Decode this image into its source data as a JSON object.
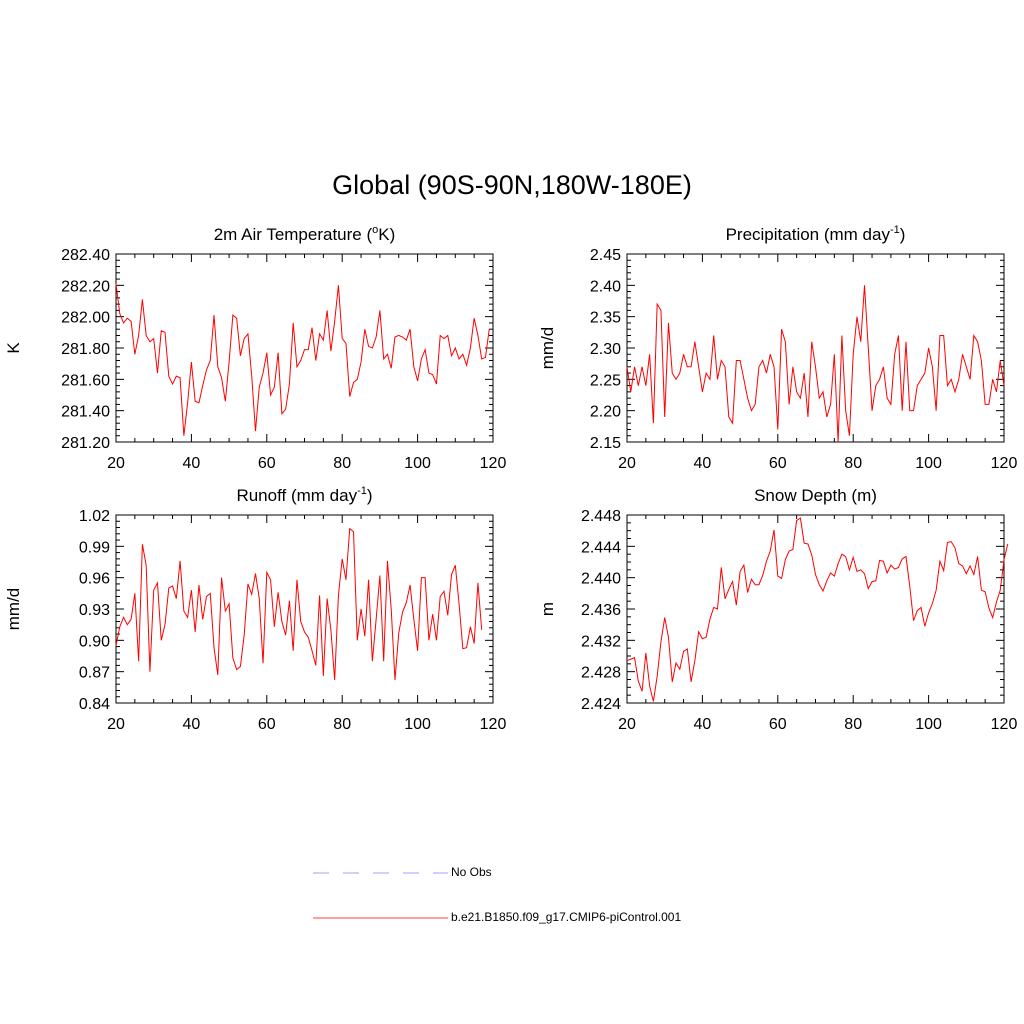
{
  "title": "Global (90S-90N,180W-180E)",
  "colors": {
    "model": "#ff0000",
    "obs": "#b3b3ff",
    "axis": "#000000"
  },
  "legend": [
    {
      "label": "No Obs",
      "style": "dashed",
      "color": "#b3b3ff"
    },
    {
      "label": "b.e21.B1850.f09_g17.CMIP6-piControl.001",
      "style": "solid",
      "color": "#ff6666"
    }
  ],
  "chart_data": [
    {
      "type": "line",
      "title": "2m Air Temperature (",
      "title_super": "o",
      "title_after": "K)",
      "ylabel": "K",
      "xlim": [
        20,
        120
      ],
      "ylim": [
        281.2,
        282.4
      ],
      "xticks": [
        20,
        40,
        60,
        80,
        100,
        120
      ],
      "xticklabels": [
        "20",
        "40",
        "60",
        "80",
        "100",
        "120"
      ],
      "yticks": [
        281.2,
        281.4,
        281.6,
        281.8,
        282.0,
        282.2,
        282.4
      ],
      "yticklabels": [
        "281.20",
        "281.40",
        "281.60",
        "281.80",
        "282.00",
        "282.20",
        "282.40"
      ],
      "yminor_count": 5,
      "x_start": 20,
      "values": [
        282.21,
        282.02,
        281.96,
        281.99,
        281.97,
        281.76,
        281.88,
        282.11,
        281.88,
        281.84,
        281.86,
        281.64,
        281.91,
        281.9,
        281.62,
        281.57,
        281.62,
        281.61,
        281.24,
        281.45,
        281.71,
        281.46,
        281.45,
        281.56,
        281.66,
        281.72,
        282.01,
        281.68,
        281.61,
        281.46,
        281.71,
        282.01,
        281.99,
        281.75,
        281.86,
        281.89,
        281.62,
        281.27,
        281.55,
        281.64,
        281.77,
        281.5,
        281.55,
        281.77,
        281.38,
        281.41,
        281.57,
        281.96,
        281.68,
        281.72,
        281.79,
        281.79,
        281.93,
        281.72,
        281.89,
        281.85,
        282.04,
        281.78,
        281.97,
        282.2,
        281.86,
        281.83,
        281.49,
        281.58,
        281.6,
        281.71,
        281.92,
        281.81,
        281.8,
        281.87,
        282.04,
        281.73,
        281.76,
        281.67,
        281.87,
        281.88,
        281.87,
        281.85,
        281.92,
        281.68,
        281.59,
        281.73,
        281.79,
        281.64,
        281.63,
        281.57,
        281.88,
        281.86,
        281.88,
        281.75,
        281.8,
        281.73,
        281.76,
        281.69,
        281.8,
        281.99,
        281.88,
        281.73,
        281.74,
        281.92
      ]
    },
    {
      "type": "line",
      "title": "Precipitation (mm day",
      "title_super": "-1",
      "title_after": ")",
      "ylabel": "mm/d",
      "xlim": [
        20,
        120
      ],
      "ylim": [
        2.15,
        2.45
      ],
      "xticks": [
        20,
        40,
        60,
        80,
        100,
        120
      ],
      "xticklabels": [
        "20",
        "40",
        "60",
        "80",
        "100",
        "120"
      ],
      "yticks": [
        2.15,
        2.2,
        2.25,
        2.3,
        2.35,
        2.4,
        2.45
      ],
      "yticklabels": [
        "2.15",
        "2.20",
        "2.25",
        "2.30",
        "2.35",
        "2.40",
        "2.45"
      ],
      "yminor_count": 5,
      "x_start": 20,
      "values": [
        2.27,
        2.23,
        2.27,
        2.24,
        2.27,
        2.24,
        2.29,
        2.18,
        2.37,
        2.36,
        2.19,
        2.34,
        2.26,
        2.25,
        2.26,
        2.29,
        2.27,
        2.27,
        2.31,
        2.27,
        2.23,
        2.26,
        2.25,
        2.32,
        2.25,
        2.28,
        2.27,
        2.19,
        2.18,
        2.28,
        2.28,
        2.25,
        2.22,
        2.2,
        2.21,
        2.27,
        2.28,
        2.26,
        2.29,
        2.27,
        2.17,
        2.33,
        2.31,
        2.21,
        2.27,
        2.23,
        2.22,
        2.26,
        2.19,
        2.31,
        2.27,
        2.22,
        2.23,
        2.19,
        2.21,
        2.29,
        2.15,
        2.32,
        2.2,
        2.16,
        2.29,
        2.35,
        2.31,
        2.4,
        2.3,
        2.2,
        2.24,
        2.25,
        2.27,
        2.22,
        2.21,
        2.29,
        2.32,
        2.2,
        2.31,
        2.2,
        2.2,
        2.24,
        2.25,
        2.26,
        2.3,
        2.27,
        2.2,
        2.32,
        2.32,
        2.24,
        2.25,
        2.23,
        2.25,
        2.29,
        2.27,
        2.25,
        2.32,
        2.31,
        2.28,
        2.21,
        2.21,
        2.25,
        2.23,
        2.28,
        2.24
      ]
    },
    {
      "type": "line",
      "title": "Runoff (mm day",
      "title_super": "-1",
      "title_after": ")",
      "ylabel": "mm/d",
      "xlim": [
        20,
        120
      ],
      "ylim": [
        0.84,
        1.02
      ],
      "xticks": [
        20,
        40,
        60,
        80,
        100,
        120
      ],
      "xticklabels": [
        "20",
        "40",
        "60",
        "80",
        "100",
        "120"
      ],
      "yticks": [
        0.84,
        0.87,
        0.9,
        0.93,
        0.96,
        0.99,
        1.02
      ],
      "yticklabels": [
        "0.84",
        "0.87",
        "0.90",
        "0.93",
        "0.96",
        "0.99",
        "1.02"
      ],
      "yminor_count": 5,
      "x_start": 20,
      "values": [
        0.895,
        0.913,
        0.922,
        0.915,
        0.92,
        0.945,
        0.88,
        0.992,
        0.972,
        0.87,
        0.948,
        0.955,
        0.9,
        0.915,
        0.95,
        0.952,
        0.94,
        0.976,
        0.928,
        0.922,
        0.948,
        0.908,
        0.953,
        0.92,
        0.942,
        0.945,
        0.893,
        0.867,
        0.96,
        0.928,
        0.935,
        0.883,
        0.872,
        0.875,
        0.905,
        0.954,
        0.944,
        0.964,
        0.94,
        0.878,
        0.965,
        0.958,
        0.913,
        0.946,
        0.918,
        0.905,
        0.938,
        0.89,
        0.958,
        0.918,
        0.908,
        0.903,
        0.89,
        0.876,
        0.943,
        0.866,
        0.94,
        0.91,
        0.862,
        0.943,
        0.978,
        0.958,
        1.007,
        1.004,
        0.9,
        0.93,
        0.904,
        0.958,
        0.88,
        0.92,
        0.962,
        0.88,
        0.976,
        0.93,
        0.862,
        0.907,
        0.927,
        0.936,
        0.953,
        0.92,
        0.89,
        0.96,
        0.96,
        0.9,
        0.925,
        0.9,
        0.942,
        0.947,
        0.924,
        0.963,
        0.972,
        0.935,
        0.892,
        0.893,
        0.913,
        0.897,
        0.955,
        0.91
      ]
    },
    {
      "type": "line",
      "title": "Snow Depth (m)",
      "title_super": "",
      "title_after": "",
      "ylabel": "m",
      "xlim": [
        20,
        120
      ],
      "ylim": [
        2.424,
        2.448
      ],
      "xticks": [
        20,
        40,
        60,
        80,
        100,
        120
      ],
      "xticklabels": [
        "20",
        "40",
        "60",
        "80",
        "100",
        "120"
      ],
      "yticks": [
        2.424,
        2.428,
        2.432,
        2.436,
        2.44,
        2.444,
        2.448
      ],
      "yticklabels": [
        "2.424",
        "2.428",
        "2.432",
        "2.436",
        "2.440",
        "2.444",
        "2.448"
      ],
      "yminor_count": 4,
      "x_start": 20,
      "values": [
        2.4294,
        2.4296,
        2.4298,
        2.4268,
        2.4255,
        2.4304,
        2.4262,
        2.4242,
        2.4274,
        2.4318,
        2.4349,
        2.4324,
        2.4267,
        2.4291,
        2.4283,
        2.4306,
        2.4309,
        2.4267,
        2.4294,
        2.4331,
        2.4322,
        2.4324,
        2.4347,
        2.4362,
        2.436,
        2.4413,
        2.4373,
        2.4385,
        2.4395,
        2.4365,
        2.4408,
        2.4416,
        2.4381,
        2.4398,
        2.4391,
        2.4391,
        2.4403,
        2.4421,
        2.4434,
        2.4461,
        2.4402,
        2.4399,
        2.4423,
        2.4434,
        2.4436,
        2.4473,
        2.4476,
        2.4444,
        2.4443,
        2.4429,
        2.4404,
        2.4391,
        2.4383,
        2.4396,
        2.4406,
        2.4402,
        2.4418,
        2.443,
        2.4427,
        2.441,
        2.4426,
        2.4408,
        2.441,
        2.4405,
        2.4386,
        2.4395,
        2.4396,
        2.4422,
        2.4421,
        2.4406,
        2.4416,
        2.4411,
        2.4413,
        2.4424,
        2.4427,
        2.4389,
        2.4345,
        2.4358,
        2.4362,
        2.4338,
        2.4355,
        2.4367,
        2.4384,
        2.4421,
        2.4409,
        2.4445,
        2.4446,
        2.4438,
        2.4418,
        2.4415,
        2.4405,
        2.4415,
        2.4404,
        2.4427,
        2.4384,
        2.4382,
        2.4361,
        2.4349,
        2.4369,
        2.4384,
        2.4423,
        2.4443
      ]
    }
  ]
}
